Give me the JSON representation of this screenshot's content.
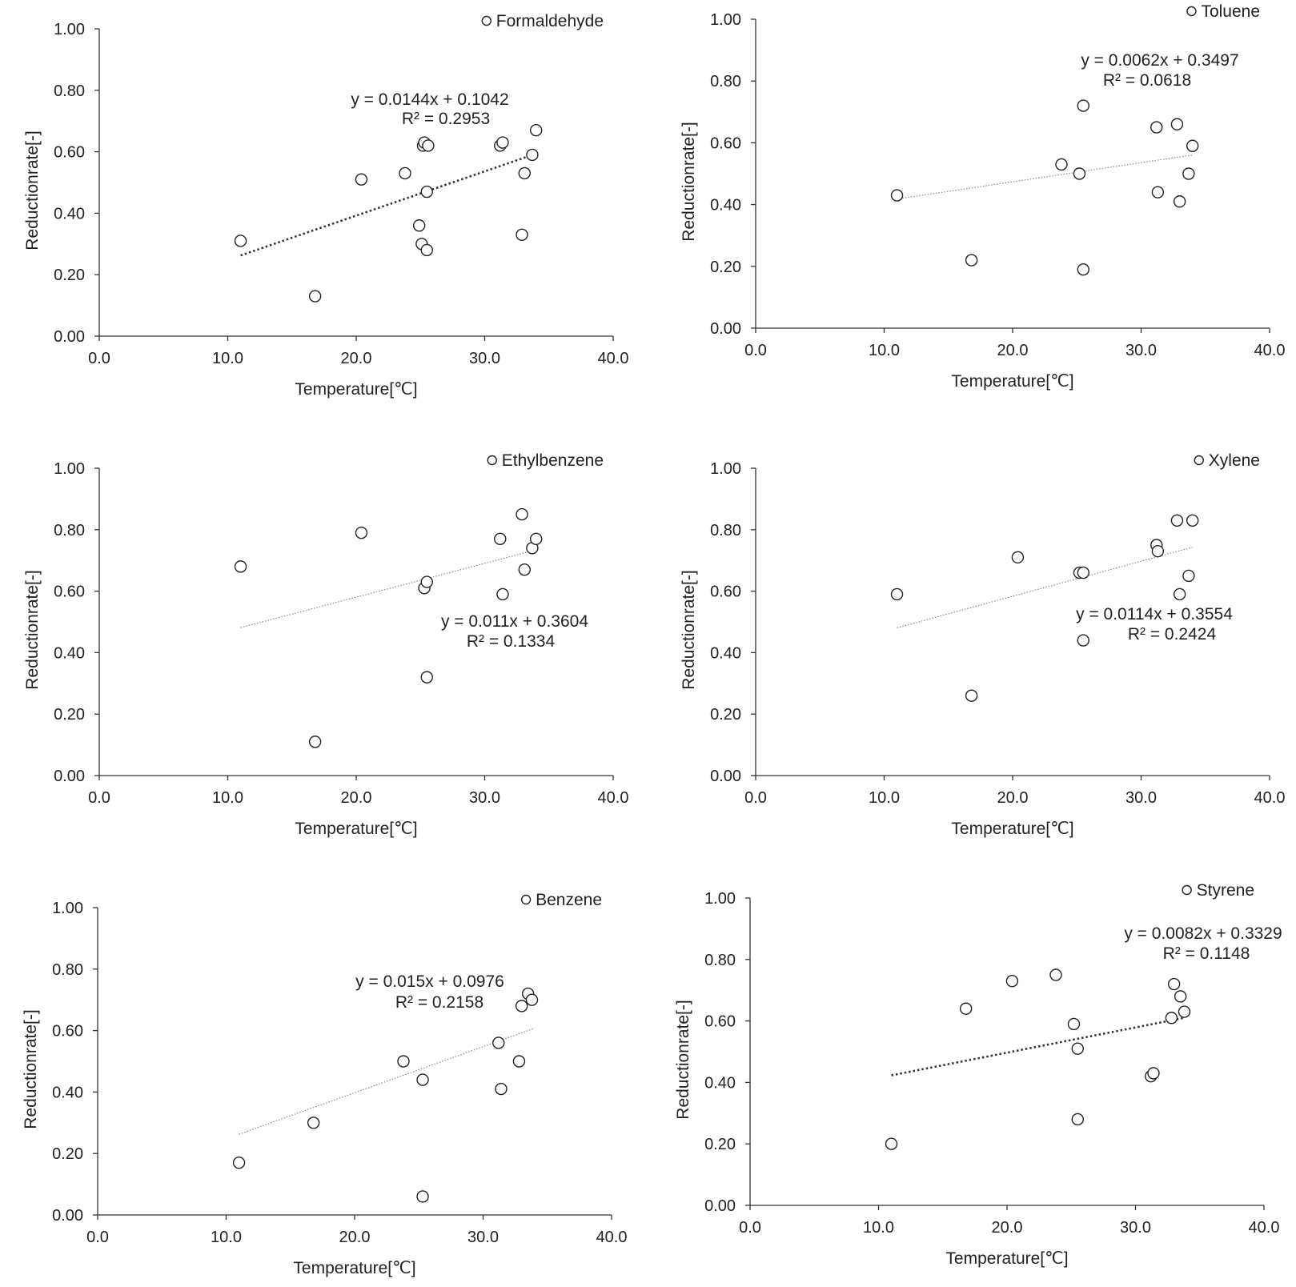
{
  "colors": {
    "axis": "#333333",
    "marker": "#222222",
    "trend": "#555555",
    "background": "#ffffff"
  },
  "chart_data": [
    {
      "type": "scatter",
      "legend": "Formaldehyde",
      "legend_position": "top-right",
      "xlabel": "Temperature[℃]",
      "ylabel": "Reductionrate[-]",
      "xlim": [
        0,
        40
      ],
      "ylim": [
        0,
        1
      ],
      "xticks": [
        "0.0",
        "10.0",
        "20.0",
        "30.0",
        "40.0"
      ],
      "yticks": [
        "0.00",
        "0.20",
        "0.40",
        "0.60",
        "0.80",
        "1.00"
      ],
      "grid": false,
      "trendline": {
        "slope": 0.0144,
        "intercept": 0.1042,
        "style": "dotted-bold",
        "x_range": [
          11.0,
          33.7
        ]
      },
      "equation": "y = 0.0144x + 0.1042",
      "r2": "R² = 0.2953",
      "points": [
        [
          11.0,
          0.31
        ],
        [
          16.8,
          0.13
        ],
        [
          20.4,
          0.51
        ],
        [
          23.8,
          0.53
        ],
        [
          24.9,
          0.36
        ],
        [
          25.1,
          0.3
        ],
        [
          25.2,
          0.62
        ],
        [
          25.3,
          0.63
        ],
        [
          25.5,
          0.28
        ],
        [
          25.5,
          0.47
        ],
        [
          25.6,
          0.62
        ],
        [
          31.2,
          0.62
        ],
        [
          31.4,
          0.63
        ],
        [
          32.9,
          0.33
        ],
        [
          33.1,
          0.53
        ],
        [
          33.7,
          0.59
        ],
        [
          34.0,
          0.67
        ]
      ]
    },
    {
      "type": "scatter",
      "legend": "Toluene",
      "legend_position": "top-right",
      "xlabel": "Temperature[℃]",
      "ylabel": "Reductionrate[-]",
      "xlim": [
        0,
        40
      ],
      "ylim": [
        0,
        1
      ],
      "xticks": [
        "0.0",
        "10.0",
        "20.0",
        "30.0",
        "40.0"
      ],
      "yticks": [
        "0.00",
        "0.20",
        "0.40",
        "0.60",
        "0.80",
        "1.00"
      ],
      "grid": false,
      "trendline": {
        "slope": 0.0062,
        "intercept": 0.3497,
        "style": "dotted-thin",
        "x_range": [
          11.0,
          34.0
        ]
      },
      "equation": "y = 0.0062x + 0.3497",
      "r2": "R² = 0.0618",
      "points": [
        [
          11.0,
          0.43
        ],
        [
          16.8,
          0.22
        ],
        [
          23.8,
          0.53
        ],
        [
          25.2,
          0.5
        ],
        [
          25.5,
          0.72
        ],
        [
          25.5,
          0.19
        ],
        [
          31.2,
          0.65
        ],
        [
          31.3,
          0.44
        ],
        [
          32.8,
          0.66
        ],
        [
          33.0,
          0.41
        ],
        [
          33.7,
          0.5
        ],
        [
          34.0,
          0.59
        ]
      ]
    },
    {
      "type": "scatter",
      "legend": "Ethylbenzene",
      "legend_position": "top-right",
      "xlabel": "Temperature[℃]",
      "ylabel": "Reductionrate[-]",
      "xlim": [
        0,
        40
      ],
      "ylim": [
        0,
        1
      ],
      "xticks": [
        "0.0",
        "10.0",
        "20.0",
        "30.0",
        "40.0"
      ],
      "yticks": [
        "0.00",
        "0.20",
        "0.40",
        "0.60",
        "0.80",
        "1.00"
      ],
      "grid": false,
      "trendline": {
        "slope": 0.011,
        "intercept": 0.3604,
        "style": "dotted-thin",
        "x_range": [
          11.0,
          33.7
        ]
      },
      "equation": "y = 0.011x + 0.3604",
      "r2": "R² = 0.1334",
      "points": [
        [
          11.0,
          0.68
        ],
        [
          16.8,
          0.11
        ],
        [
          20.4,
          0.79
        ],
        [
          25.3,
          0.61
        ],
        [
          25.5,
          0.63
        ],
        [
          25.5,
          0.32
        ],
        [
          31.2,
          0.77
        ],
        [
          31.4,
          0.59
        ],
        [
          32.9,
          0.85
        ],
        [
          33.1,
          0.67
        ],
        [
          33.7,
          0.74
        ],
        [
          34.0,
          0.77
        ]
      ]
    },
    {
      "type": "scatter",
      "legend": "Xylene",
      "legend_position": "top-right",
      "xlabel": "Temperature[℃]",
      "ylabel": "Reductionrate[-]",
      "xlim": [
        0,
        40
      ],
      "ylim": [
        0,
        1
      ],
      "xticks": [
        "0.0",
        "10.0",
        "20.0",
        "30.0",
        "40.0"
      ],
      "yticks": [
        "0.00",
        "0.20",
        "0.40",
        "0.60",
        "0.80",
        "1.00"
      ],
      "grid": false,
      "trendline": {
        "slope": 0.0114,
        "intercept": 0.3554,
        "style": "dotted-thin",
        "x_range": [
          11.0,
          34.0
        ]
      },
      "equation": "y = 0.0114x + 0.3554",
      "r2": "R² = 0.2424",
      "points": [
        [
          11.0,
          0.59
        ],
        [
          16.8,
          0.26
        ],
        [
          20.4,
          0.71
        ],
        [
          25.2,
          0.66
        ],
        [
          25.5,
          0.66
        ],
        [
          25.5,
          0.44
        ],
        [
          31.2,
          0.75
        ],
        [
          31.3,
          0.73
        ],
        [
          32.8,
          0.83
        ],
        [
          33.0,
          0.59
        ],
        [
          33.7,
          0.65
        ],
        [
          34.0,
          0.83
        ]
      ]
    },
    {
      "type": "scatter",
      "legend": "Benzene",
      "legend_position": "top-right",
      "xlabel": "Temperature[℃]",
      "ylabel": "Reductionrate[-]",
      "xlim": [
        0,
        40
      ],
      "ylim": [
        0,
        1
      ],
      "xticks": [
        "0.0",
        "10.0",
        "20.0",
        "30.0",
        "40.0"
      ],
      "yticks": [
        "0.00",
        "0.20",
        "0.40",
        "0.60",
        "0.80",
        "1.00"
      ],
      "grid": false,
      "trendline": {
        "slope": 0.015,
        "intercept": 0.0976,
        "style": "dotted-thin",
        "x_range": [
          11.0,
          34.0
        ]
      },
      "equation": "y = 0.015x + 0.0976",
      "r2": "R² = 0.2158",
      "points": [
        [
          11.0,
          0.17
        ],
        [
          16.8,
          0.3
        ],
        [
          23.8,
          0.5
        ],
        [
          25.3,
          0.44
        ],
        [
          25.3,
          0.06
        ],
        [
          31.2,
          0.56
        ],
        [
          31.4,
          0.41
        ],
        [
          32.8,
          0.5
        ],
        [
          33.0,
          0.68
        ],
        [
          33.5,
          0.72
        ],
        [
          33.8,
          0.7
        ]
      ]
    },
    {
      "type": "scatter",
      "legend": "Styrene",
      "legend_position": "top-right",
      "xlabel": "Temperature[℃]",
      "ylabel": "Reductionrate[-]",
      "xlim": [
        0,
        40
      ],
      "ylim": [
        0,
        1
      ],
      "xticks": [
        "0.0",
        "10.0",
        "20.0",
        "30.0",
        "40.0"
      ],
      "yticks": [
        "0.00",
        "0.20",
        "0.40",
        "0.60",
        "0.80",
        "1.00"
      ],
      "grid": false,
      "trendline": {
        "slope": 0.0082,
        "intercept": 0.3329,
        "style": "dotted-bold",
        "x_range": [
          11.0,
          33.7
        ]
      },
      "equation": "y = 0.0082x + 0.3329",
      "r2": "R² = 0.1148",
      "points": [
        [
          11.0,
          0.2
        ],
        [
          16.8,
          0.64
        ],
        [
          20.4,
          0.73
        ],
        [
          23.8,
          0.75
        ],
        [
          25.2,
          0.59
        ],
        [
          25.5,
          0.51
        ],
        [
          25.5,
          0.28
        ],
        [
          31.2,
          0.42
        ],
        [
          31.4,
          0.43
        ],
        [
          32.8,
          0.61
        ],
        [
          33.0,
          0.72
        ],
        [
          33.5,
          0.68
        ],
        [
          33.8,
          0.63
        ]
      ]
    }
  ]
}
